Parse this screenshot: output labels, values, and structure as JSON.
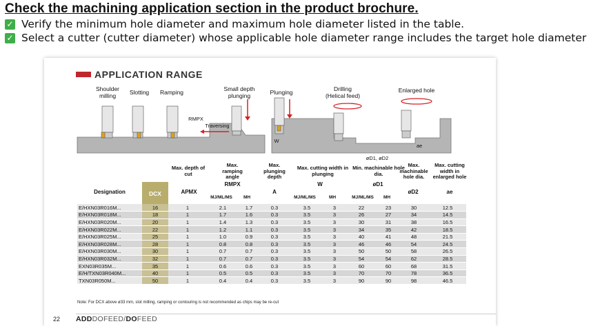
{
  "instructions": {
    "heading": "Check the machining application section in the product brochure.",
    "steps": [
      "Verify the minimum hole diameter and maximum hole diameter listed in the table.",
      "Select a cutter (cutter diameter) whose applicable hole diameter range includes the target hole diameter"
    ]
  },
  "brochure": {
    "section_title": "APPLICATION RANGE",
    "diagram_labels": {
      "shoulder_milling": "Shoulder milling",
      "slotting": "Slotting",
      "ramping": "Ramping",
      "small_depth_plunging": "Small depth plunging",
      "plunging": "Plunging",
      "drilling": "Drilling (Helical feed)",
      "enlarged_hole": "Enlarged hole",
      "apmx": "APMX",
      "rmpx": "RMPX",
      "traversing": "Traversing",
      "a": "A",
      "w": "W",
      "ae": "ae",
      "od1_od2": "øD1, øD2"
    },
    "table": {
      "headers": {
        "designation": "Designation",
        "dcx": "DCX",
        "max_depth": "Max. depth of cut",
        "apmx": "APMX",
        "max_ramping": "Max. ramping angle",
        "rmpx": "RMPX",
        "max_plunging": "Max. plunging depth",
        "a": "A",
        "max_cut_width": "Max. cutting width in plunging",
        "w": "W",
        "min_hole": "Min. machinable hole dia.",
        "od1": "øD1",
        "max_hole": "Max. machinable hole dia.",
        "od2": "øD2",
        "max_cut_enlarged": "Max. cutting width in enlarged hole",
        "ae": "ae",
        "mj": "MJ/ML/MS",
        "mh": "MH"
      },
      "rows": [
        {
          "d": "E/HXN03R016M...",
          "dcx": "16",
          "apmx": "1",
          "r1": "2.1",
          "r2": "1.7",
          "a": "0.3",
          "w1": "3.5",
          "w2": "3",
          "d1a": "22",
          "d1b": "23",
          "d2": "30",
          "ae": "12.5"
        },
        {
          "d": "E/HXN03R018M...",
          "dcx": "18",
          "apmx": "1",
          "r1": "1.7",
          "r2": "1.6",
          "a": "0.3",
          "w1": "3.5",
          "w2": "3",
          "d1a": "26",
          "d1b": "27",
          "d2": "34",
          "ae": "14.5"
        },
        {
          "d": "E/HXN03R020M...",
          "dcx": "20",
          "apmx": "1",
          "r1": "1.4",
          "r2": "1.3",
          "a": "0.3",
          "w1": "3.5",
          "w2": "3",
          "d1a": "30",
          "d1b": "31",
          "d2": "38",
          "ae": "16.5"
        },
        {
          "d": "E/HXN03R022M...",
          "dcx": "22",
          "apmx": "1",
          "r1": "1.2",
          "r2": "1.1",
          "a": "0.3",
          "w1": "3.5",
          "w2": "3",
          "d1a": "34",
          "d1b": "35",
          "d2": "42",
          "ae": "18.5"
        },
        {
          "d": "E/HXN03R025M...",
          "dcx": "25",
          "apmx": "1",
          "r1": "1.0",
          "r2": "0.9",
          "a": "0.3",
          "w1": "3.5",
          "w2": "3",
          "d1a": "40",
          "d1b": "41",
          "d2": "48",
          "ae": "21.5"
        },
        {
          "d": "E/HXN03R028M...",
          "dcx": "28",
          "apmx": "1",
          "r1": "0.8",
          "r2": "0.8",
          "a": "0.3",
          "w1": "3.5",
          "w2": "3",
          "d1a": "46",
          "d1b": "46",
          "d2": "54",
          "ae": "24.5"
        },
        {
          "d": "E/HXN03R030M...",
          "dcx": "30",
          "apmx": "1",
          "r1": "0.7",
          "r2": "0.7",
          "a": "0.3",
          "w1": "3.5",
          "w2": "3",
          "d1a": "50",
          "d1b": "50",
          "d2": "58",
          "ae": "26.5"
        },
        {
          "d": "E/HXN03R032M...",
          "dcx": "32",
          "apmx": "1",
          "r1": "0.7",
          "r2": "0.7",
          "a": "0.3",
          "w1": "3.5",
          "w2": "3",
          "d1a": "54",
          "d1b": "54",
          "d2": "62",
          "ae": "28.5"
        },
        {
          "d": "EXN03R035M...",
          "dcx": "35",
          "apmx": "1",
          "r1": "0.6",
          "r2": "0.6",
          "a": "0.3",
          "w1": "3.5",
          "w2": "3",
          "d1a": "60",
          "d1b": "60",
          "d2": "68",
          "ae": "31.5"
        },
        {
          "d": "E/H/TXN03R040M...",
          "dcx": "40",
          "apmx": "1",
          "r1": "0.5",
          "r2": "0.5",
          "a": "0.3",
          "w1": "3.5",
          "w2": "3",
          "d1a": "70",
          "d1b": "70",
          "d2": "78",
          "ae": "36.5"
        },
        {
          "d": "TXN03R050M...",
          "dcx": "50",
          "apmx": "1",
          "r1": "0.4",
          "r2": "0.4",
          "a": "0.3",
          "w1": "3.5",
          "w2": "3",
          "d1a": "90",
          "d1b": "90",
          "d2": "98",
          "ae": "46.5"
        }
      ],
      "note": "Note: For DCX above ø33 mm, slot milling, ramping or contouring is not recommended as chips may be re-cut"
    },
    "page_number": "22",
    "brand_bold": "ADD",
    "brand_light": "DOFEED/",
    "brand_bold2": "DO",
    "brand_end": "FEED"
  }
}
